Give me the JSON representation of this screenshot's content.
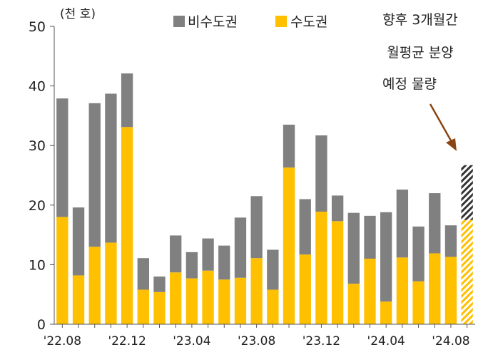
{
  "chart_data": {
    "type": "bar",
    "stacked": true,
    "unit_label": "(천 호)",
    "ylim": [
      0,
      50
    ],
    "yticks": [
      0,
      10,
      20,
      30,
      40,
      50
    ],
    "x": [
      "'22.08",
      "'22.09",
      "'22.10",
      "'22.11",
      "'22.12",
      "'23.01",
      "'23.02",
      "'23.03",
      "'23.04",
      "'23.05",
      "'23.06",
      "'23.07",
      "'23.08",
      "'23.09",
      "'23.10",
      "'23.11",
      "'23.12",
      "'24.01",
      "'24.02",
      "'24.03",
      "'24.04",
      "'24.05",
      "'24.06",
      "'24.07",
      "'24.08",
      "향후 3개월"
    ],
    "xticklabels": [
      "'22.08",
      "'22.12",
      "'23.04",
      "'23.08",
      "'23.12",
      "'24.04",
      "'24.08"
    ],
    "xtick_index": [
      0,
      4,
      8,
      12,
      16,
      20,
      24
    ],
    "series": [
      {
        "name": "수도권",
        "color": "#FFC000",
        "values": [
          18.0,
          8.2,
          13.0,
          13.7,
          33.1,
          5.8,
          5.4,
          8.7,
          7.7,
          9.0,
          7.5,
          7.8,
          11.1,
          5.8,
          26.3,
          11.7,
          18.9,
          17.3,
          6.8,
          11.0,
          3.8,
          11.2,
          7.2,
          11.9,
          11.3,
          17.5
        ]
      },
      {
        "name": "비수도권",
        "color": "#808080",
        "values": [
          19.9,
          11.4,
          24.1,
          25.0,
          9.0,
          5.3,
          2.6,
          6.2,
          4.4,
          5.4,
          5.7,
          10.1,
          10.4,
          6.7,
          7.2,
          9.3,
          12.8,
          4.3,
          11.9,
          7.2,
          15.0,
          11.4,
          9.2,
          10.1,
          5.3,
          9.2
        ]
      }
    ],
    "projected_last_bar": true,
    "annotation": [
      "향후 3개월간",
      "월평균 분양",
      "예정 물량"
    ]
  }
}
